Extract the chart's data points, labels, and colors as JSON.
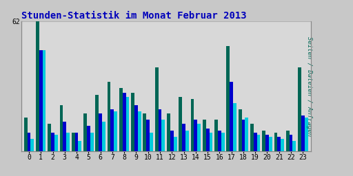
{
  "title": "Stunden-Statistik im Monat Februar 2013",
  "title_color": "#0000bb",
  "background_color": "#c8c8c8",
  "plot_bg_color": "#d8d8d8",
  "ylabel_right": "Seiten / Dateien / Anfragen",
  "hours": [
    0,
    1,
    2,
    3,
    4,
    5,
    6,
    7,
    8,
    9,
    10,
    11,
    12,
    13,
    14,
    15,
    16,
    17,
    18,
    19,
    20,
    21,
    22,
    23
  ],
  "seiten": [
    16,
    62,
    13,
    22,
    9,
    18,
    27,
    33,
    30,
    28,
    18,
    40,
    18,
    26,
    25,
    15,
    15,
    50,
    20,
    13,
    10,
    9,
    10,
    40
  ],
  "dateien": [
    9,
    48,
    9,
    14,
    9,
    12,
    18,
    20,
    28,
    22,
    15,
    20,
    10,
    13,
    15,
    11,
    10,
    33,
    15,
    9,
    8,
    7,
    8,
    17
  ],
  "anfragen": [
    6,
    48,
    8,
    9,
    5,
    9,
    14,
    19,
    26,
    19,
    9,
    15,
    7,
    10,
    13,
    9,
    9,
    23,
    16,
    8,
    7,
    6,
    5,
    16
  ],
  "ylim": [
    0,
    62
  ],
  "color_seiten": "#006655",
  "color_dateien": "#0000cc",
  "color_anfragen": "#00ccdd",
  "grid_color": "#aaaaaa",
  "title_fontsize": 10,
  "bar_width": 0.28,
  "tick_fontsize": 7
}
